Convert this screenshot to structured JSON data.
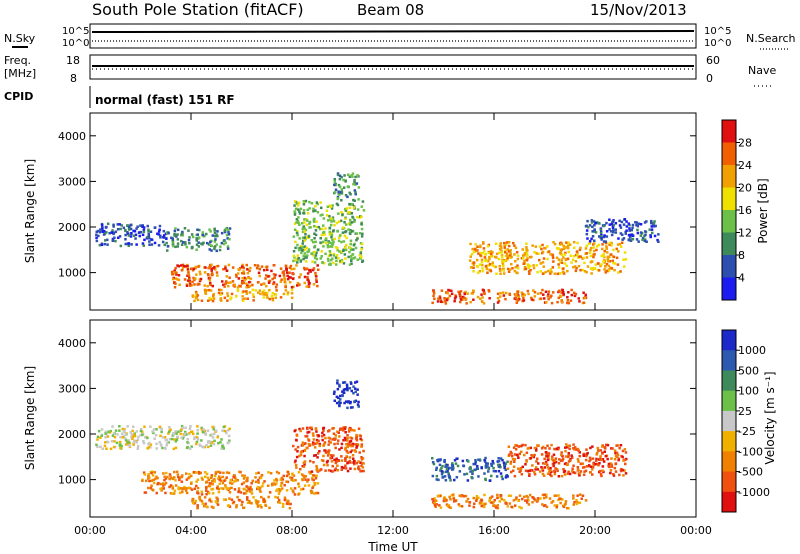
{
  "header": {
    "station": "South Pole Station (fitACF)",
    "beam": "Beam 08",
    "date": "15/Nov/2013"
  },
  "noise_panel": {
    "left_label": "N.Sky",
    "right_label": "N.Search",
    "ticks": [
      "10^5",
      "10^0"
    ]
  },
  "freq_panel": {
    "left_label_1": "Freq.",
    "left_label_2": "[MHz]",
    "left_ticks": [
      "18",
      "8"
    ],
    "right_label": "Nave",
    "right_ticks": [
      "60",
      "0"
    ]
  },
  "cpid": {
    "label": "CPID",
    "mode": "normal (fast) 151 RF"
  },
  "chart_data": [
    {
      "type": "heatmap",
      "name": "power",
      "ylabel": "Slant Range [km]",
      "xlabel": "",
      "ylim": [
        180,
        4500
      ],
      "y_ticks": [
        "1000",
        "2000",
        "3000",
        "4000"
      ],
      "colorbar_label": "Power [dB]",
      "colorbar_ticks": [
        "4",
        "8",
        "12",
        "16",
        "20",
        "24",
        "28"
      ],
      "colors": [
        "#1c1cf0",
        "#2c4fb0",
        "#3f8a5a",
        "#6cc04a",
        "#f0e000",
        "#f0a000",
        "#f06000",
        "#e01010"
      ],
      "echo_regions": [
        {
          "x0": 0.2,
          "x1": 3.0,
          "y0": 1600,
          "y1": 2100,
          "level": 1
        },
        {
          "x0": 3.0,
          "x1": 5.5,
          "y0": 1500,
          "y1": 2000,
          "level": 2
        },
        {
          "x0": 3.2,
          "x1": 9.0,
          "y0": 700,
          "y1": 1200,
          "level": 6
        },
        {
          "x0": 4.0,
          "x1": 8.0,
          "y0": 400,
          "y1": 650,
          "level": 5
        },
        {
          "x0": 8.0,
          "x1": 10.8,
          "y0": 1200,
          "y1": 2600,
          "level": 3
        },
        {
          "x0": 9.6,
          "x1": 10.6,
          "y0": 2600,
          "y1": 3200,
          "level": 2
        },
        {
          "x0": 13.5,
          "x1": 19.6,
          "y0": 350,
          "y1": 650,
          "level": 6
        },
        {
          "x0": 15.0,
          "x1": 21.2,
          "y0": 1000,
          "y1": 1700,
          "level": 5
        },
        {
          "x0": 19.5,
          "x1": 22.5,
          "y0": 1700,
          "y1": 2200,
          "level": 1
        }
      ]
    },
    {
      "type": "heatmap",
      "name": "velocity",
      "ylabel": "Slant Range [km]",
      "xlabel": "Time UT",
      "ylim": [
        180,
        4500
      ],
      "x_ticks": [
        "00:00",
        "04:00",
        "08:00",
        "12:00",
        "16:00",
        "20:00",
        "00:00"
      ],
      "y_ticks": [
        "1000",
        "2000",
        "3000",
        "4000"
      ],
      "colorbar_label": "Velocity [m s⁻¹]",
      "colorbar_ticks": [
        "1000",
        "500",
        "100",
        "25",
        "-25",
        "-100",
        "-500",
        "-1000"
      ],
      "colors": [
        "#1c28c8",
        "#2c5ab0",
        "#3f8a5a",
        "#6cc04a",
        "#c8c8c8",
        "#f0b000",
        "#f08000",
        "#f05010",
        "#e01010"
      ],
      "echo_regions": [
        {
          "x0": 0.2,
          "x1": 5.5,
          "y0": 1700,
          "y1": 2200,
          "level": 4
        },
        {
          "x0": 2.0,
          "x1": 9.0,
          "y0": 700,
          "y1": 1200,
          "level": 6
        },
        {
          "x0": 4.0,
          "x1": 8.0,
          "y0": 400,
          "y1": 650,
          "level": 6
        },
        {
          "x0": 8.0,
          "x1": 10.8,
          "y0": 1200,
          "y1": 2200,
          "level": 7
        },
        {
          "x0": 9.6,
          "x1": 10.6,
          "y0": 2600,
          "y1": 3200,
          "level": 0
        },
        {
          "x0": 13.5,
          "x1": 19.6,
          "y0": 400,
          "y1": 700,
          "level": 6
        },
        {
          "x0": 13.5,
          "x1": 16.5,
          "y0": 1000,
          "y1": 1500,
          "level": 1
        },
        {
          "x0": 16.5,
          "x1": 21.2,
          "y0": 1100,
          "y1": 1800,
          "level": 7
        }
      ]
    }
  ]
}
